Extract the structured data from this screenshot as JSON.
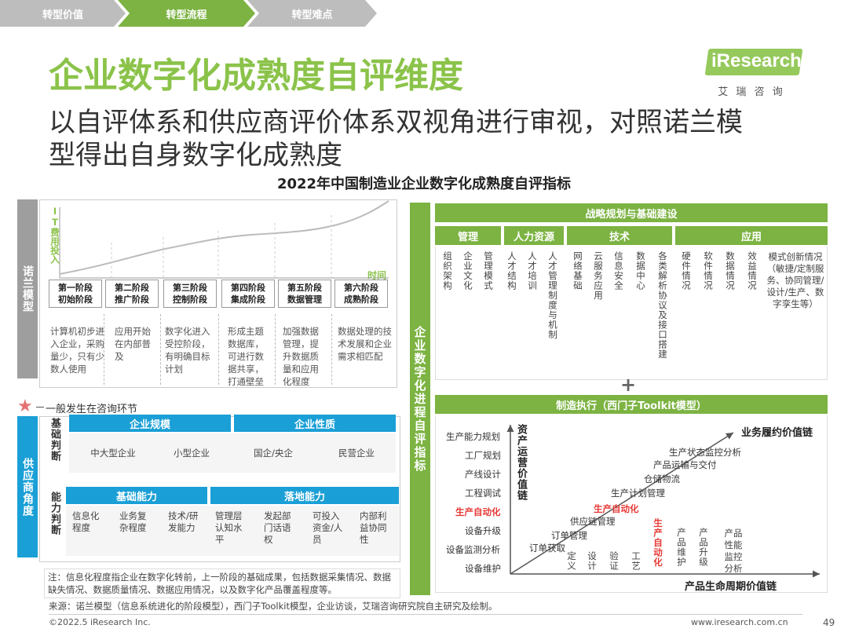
{
  "breadcrumb": [
    "转型价值",
    "转型流程",
    "转型难点"
  ],
  "logo": {
    "text": "iResearch",
    "sub": "艾 瑞 咨 询"
  },
  "title": "企业数字化成熟度自评维度",
  "subtitle_line1": "以自评体系和供应商评价体系双视角进行审视，对照诺兰模",
  "subtitle_line2": "型得出自身数字化成熟度",
  "chart_title": "2022年中国制造业企业数字化成熟度自评指标",
  "nolan": {
    "side_label": "诺兰模型",
    "y_label": "IT费用投入",
    "x_label": "时间",
    "stages": [
      {
        "name": "第一阶段",
        "sub": "初始阶段",
        "desc": "计算机初步进入企业，采购量少，只有少数人使用"
      },
      {
        "name": "第二阶段",
        "sub": "推广阶段",
        "desc": "应用开始在内部普及"
      },
      {
        "name": "第三阶段",
        "sub": "控制阶段",
        "desc": "数字化进入受控阶段，有明确目标计划"
      },
      {
        "name": "第四阶段",
        "sub": "集成阶段",
        "desc": "形成主题数据库，可进行数据共享，打通壁垒"
      },
      {
        "name": "第五阶段",
        "sub": "数据管理",
        "desc": "加强数据管理，提升数据质量和应用化程度"
      },
      {
        "name": "第六阶段",
        "sub": "成熟阶段",
        "desc": "数据处理的技术发展和企业需求相匹配"
      }
    ]
  },
  "consult_note": "一般发生在咨询环节",
  "supplier": {
    "side_label": "供应商角度",
    "basic_label": "基础判断",
    "ability_label": "能力判断",
    "scale_header": "企业规模",
    "nature_header": "企业性质",
    "basic_items": [
      "中大型企业",
      "小型企业",
      "国企/央企",
      "民营企业"
    ],
    "found_header": "基础能力",
    "land_header": "落地能力",
    "ability_items": [
      "信息化程度",
      "业务复杂程度",
      "技术/研发能力",
      "管理层认知水平",
      "发起部门话语权",
      "可投入资金/人员",
      "内部利益协同性"
    ]
  },
  "note": "注：信息化程度指企业在数字化转前，上一阶段的基础成果，包括数据采集情况、数据缺失情况、数据质量情况、数据应用情况，以及数字化产品覆盖程度等。",
  "right": {
    "side_label": "企业数字化进程自评指标",
    "strategy_header": "战略规划与基础建设",
    "categories": [
      "管理",
      "人力资源",
      "技术",
      "应用"
    ],
    "items_mgmt": [
      "组织架构",
      "企业文化",
      "管理模式"
    ],
    "items_hr": [
      "人才结构",
      "人才培训",
      "人才管理制度与机制"
    ],
    "items_tech": [
      "网络基础",
      "云服务应用",
      "信息安全",
      "数据中心",
      "各类解析协议及接口搭建"
    ],
    "items_app": [
      "硬件情况",
      "软件情况",
      "数据情况",
      "效益情况"
    ],
    "app_last": "模式创新情况（敏捷/定制服务、协同管理/设计/生产、数字孪生等）",
    "plus": "+",
    "exec_header": "制造执行（西门子Toolkit模型）",
    "y_axis": "资产运营价值链",
    "x_axis": "产品生命周期价值链",
    "biz_chain": "业务履约价值链",
    "y_items": [
      "生产能力规划",
      "工厂规划",
      "产线设计",
      "工程调试",
      "生产自动化",
      "设备升级",
      "设备监测分析",
      "设备维护"
    ],
    "diag_items": [
      "订单获取",
      "订单管理",
      "供应链管理",
      "生产自动化",
      "生产计划管理",
      "仓储物流",
      "产品运输与交付",
      "生产状态监控分析"
    ],
    "x_items": [
      "定义",
      "设计",
      "验证",
      "工艺",
      "生产自动化",
      "产品维护",
      "产品升级",
      "产品性能监控分析"
    ]
  },
  "source": "来源：诺兰模型（信息系统进化的阶段模型），西门子Toolkit模型，企业访谈，艾瑞咨询研究院自主研究及绘制。",
  "footer_left": "©2022.5 iResearch Inc.",
  "footer_right": "www.iresearch.com.cn",
  "page_number": "49",
  "colors": {
    "green": "#7cb342",
    "blue": "#1a9fd6",
    "grey": "#9e9e9e",
    "red": "#e53935"
  }
}
